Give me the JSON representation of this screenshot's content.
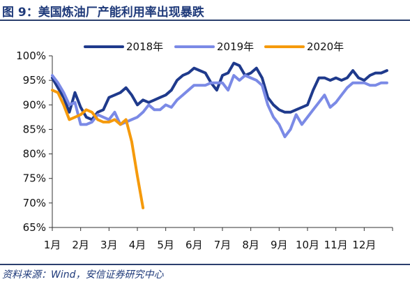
{
  "header": {
    "title": "图 9：美国炼油厂产能利用率出现暴跌"
  },
  "footer": {
    "source": "资料来源：Wind，安信证券研究中心"
  },
  "chart_data": {
    "type": "line",
    "title": "",
    "xlabel": "",
    "ylabel": "",
    "x_domain": [
      1,
      13
    ],
    "ylim": [
      65,
      100
    ],
    "y_ticks": [
      65,
      70,
      75,
      80,
      85,
      90,
      95,
      100
    ],
    "y_tick_labels": [
      "65%",
      "70%",
      "75%",
      "80%",
      "85%",
      "90%",
      "95%",
      "100%"
    ],
    "x_ticks": [
      1,
      2,
      3,
      4,
      5,
      6,
      7,
      8,
      9,
      10,
      11,
      12
    ],
    "x_tick_labels": [
      "1月",
      "2月",
      "3月",
      "4月",
      "5月",
      "6月",
      "7月",
      "8月",
      "9月",
      "10月",
      "11月",
      "12月"
    ],
    "grid": false,
    "legend_position": "top",
    "series": [
      {
        "name": "2018年",
        "color": "#1f3a8c",
        "x": [
          1.0,
          1.2,
          1.4,
          1.6,
          1.8,
          2.0,
          2.2,
          2.4,
          2.6,
          2.8,
          3.0,
          3.2,
          3.4,
          3.6,
          3.8,
          4.0,
          4.2,
          4.4,
          4.6,
          4.8,
          5.0,
          5.2,
          5.4,
          5.6,
          5.8,
          6.0,
          6.2,
          6.4,
          6.6,
          6.8,
          7.0,
          7.2,
          7.4,
          7.6,
          7.8,
          8.0,
          8.2,
          8.4,
          8.6,
          8.8,
          9.0,
          9.2,
          9.4,
          9.6,
          9.8,
          10.0,
          10.2,
          10.4,
          10.6,
          10.8,
          11.0,
          11.2,
          11.4,
          11.6,
          11.8,
          12.0,
          12.2,
          12.4,
          12.6,
          12.8
        ],
        "values": [
          95.5,
          93.5,
          91.5,
          88.5,
          92.5,
          89.5,
          87.5,
          87.0,
          88.5,
          89.0,
          91.5,
          92.0,
          92.5,
          93.5,
          92.0,
          90.0,
          91.0,
          90.5,
          91.0,
          91.5,
          92.0,
          93.0,
          95.0,
          96.0,
          96.5,
          97.5,
          97.0,
          96.5,
          94.5,
          93.0,
          96.0,
          96.5,
          98.5,
          98.0,
          96.0,
          96.5,
          97.5,
          95.5,
          91.5,
          90.0,
          89.0,
          88.5,
          88.5,
          89.0,
          89.5,
          90.0,
          93.0,
          95.5,
          95.5,
          95.0,
          95.5,
          95.0,
          95.5,
          97.0,
          95.5,
          95.0,
          96.0,
          96.5,
          96.5,
          97.0
        ]
      },
      {
        "name": "2019年",
        "color": "#7b8ae6",
        "x": [
          1.0,
          1.2,
          1.4,
          1.6,
          1.8,
          2.0,
          2.2,
          2.4,
          2.6,
          2.8,
          3.0,
          3.2,
          3.4,
          3.6,
          3.8,
          4.0,
          4.2,
          4.4,
          4.6,
          4.8,
          5.0,
          5.2,
          5.4,
          5.6,
          5.8,
          6.0,
          6.2,
          6.4,
          6.6,
          6.8,
          7.0,
          7.2,
          7.4,
          7.6,
          7.8,
          8.0,
          8.2,
          8.4,
          8.6,
          8.8,
          9.0,
          9.2,
          9.4,
          9.6,
          9.8,
          10.0,
          10.2,
          10.4,
          10.6,
          10.8,
          11.0,
          11.2,
          11.4,
          11.6,
          11.8,
          12.0,
          12.2,
          12.4,
          12.6,
          12.8
        ],
        "values": [
          96.0,
          94.5,
          92.5,
          90.0,
          90.5,
          86.0,
          86.0,
          86.5,
          88.0,
          87.5,
          87.0,
          88.5,
          86.0,
          86.5,
          87.0,
          87.5,
          88.5,
          90.0,
          89.0,
          89.0,
          90.0,
          89.5,
          91.0,
          92.0,
          93.0,
          94.0,
          94.0,
          94.0,
          94.5,
          94.5,
          94.5,
          93.0,
          96.0,
          95.0,
          96.0,
          95.5,
          95.0,
          94.0,
          90.0,
          87.5,
          86.0,
          83.5,
          85.0,
          88.0,
          86.0,
          87.5,
          89.0,
          90.5,
          92.0,
          89.5,
          90.5,
          92.0,
          93.5,
          94.5,
          94.5,
          94.5,
          94.0,
          94.0,
          94.5,
          94.5
        ]
      },
      {
        "name": "2020年",
        "color": "#f59a0c",
        "x": [
          1.0,
          1.2,
          1.4,
          1.6,
          1.8,
          2.0,
          2.2,
          2.4,
          2.6,
          2.8,
          3.0,
          3.2,
          3.4,
          3.6,
          3.8,
          4.0,
          4.2
        ],
        "values": [
          93.0,
          92.5,
          90.0,
          87.0,
          87.5,
          88.0,
          89.0,
          88.5,
          87.0,
          86.5,
          86.5,
          87.0,
          86.0,
          87.0,
          82.5,
          75.5,
          69.0
        ]
      }
    ]
  }
}
